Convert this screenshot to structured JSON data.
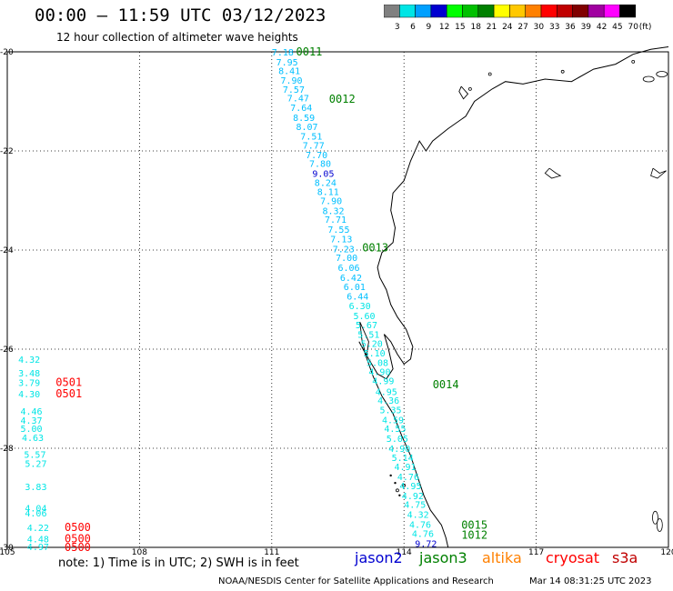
{
  "header": {
    "title": "00:00 — 11:59 UTC 03/12/2023",
    "subtitle": "12 hour collection of altimeter wave heights"
  },
  "colorbar": {
    "colors": [
      "#808080",
      "#00e5e5",
      "#00a0ff",
      "#0000d0",
      "#00ff00",
      "#00c000",
      "#008000",
      "#ffff00",
      "#ffc800",
      "#ff8000",
      "#ff0000",
      "#c00000",
      "#800000",
      "#a000a0",
      "#ff00ff",
      "#000000"
    ],
    "labels": [
      "3",
      "6",
      "9",
      "12",
      "15",
      "18",
      "21",
      "24",
      "27",
      "30",
      "33",
      "36",
      "39",
      "42",
      "45",
      "70"
    ],
    "unit": "(ft)"
  },
  "map": {
    "lon_ticks": [
      "105",
      "108",
      "111",
      "114",
      "117",
      "120"
    ],
    "lat_ticks": [
      "-20",
      "-22",
      "-24",
      "-26",
      "-28",
      "-30"
    ],
    "track_values": [
      {
        "text": "7.18",
        "lon": 111.0,
        "lat": -20.0,
        "color": "#00bfff"
      },
      {
        "text": "7.95",
        "lon": 111.1,
        "lat": -20.2,
        "color": "#00bfff"
      },
      {
        "text": "8.41",
        "lon": 111.15,
        "lat": -20.38,
        "color": "#00bfff"
      },
      {
        "text": "7.90",
        "lon": 111.2,
        "lat": -20.57,
        "color": "#00bfff"
      },
      {
        "text": "7.57",
        "lon": 111.25,
        "lat": -20.75,
        "color": "#00bfff"
      },
      {
        "text": "7.47",
        "lon": 111.35,
        "lat": -20.93,
        "color": "#00bfff"
      },
      {
        "text": "7.64",
        "lon": 111.42,
        "lat": -21.12,
        "color": "#00bfff"
      },
      {
        "text": "8.59",
        "lon": 111.48,
        "lat": -21.32,
        "color": "#00bfff"
      },
      {
        "text": "8.07",
        "lon": 111.55,
        "lat": -21.5,
        "color": "#00bfff"
      },
      {
        "text": "7.51",
        "lon": 111.65,
        "lat": -21.7,
        "color": "#00bfff"
      },
      {
        "text": "7.77",
        "lon": 111.7,
        "lat": -21.88,
        "color": "#00bfff"
      },
      {
        "text": "7.70",
        "lon": 111.77,
        "lat": -22.07,
        "color": "#00bfff"
      },
      {
        "text": "7.80",
        "lon": 111.85,
        "lat": -22.25,
        "color": "#00bfff"
      },
      {
        "text": "9.05",
        "lon": 111.92,
        "lat": -22.45,
        "color": "#0000d0"
      },
      {
        "text": "8.24",
        "lon": 111.97,
        "lat": -22.63,
        "color": "#00bfff"
      },
      {
        "text": "8.11",
        "lon": 112.03,
        "lat": -22.82,
        "color": "#00bfff"
      },
      {
        "text": "7.90",
        "lon": 112.1,
        "lat": -23.0,
        "color": "#00bfff"
      },
      {
        "text": "8.32",
        "lon": 112.15,
        "lat": -23.2,
        "color": "#00bfff"
      },
      {
        "text": "7.71",
        "lon": 112.2,
        "lat": -23.38,
        "color": "#00bfff"
      },
      {
        "text": "7.55",
        "lon": 112.27,
        "lat": -23.58,
        "color": "#00bfff"
      },
      {
        "text": "7.13",
        "lon": 112.33,
        "lat": -23.77,
        "color": "#00bfff"
      },
      {
        "text": "7.23",
        "lon": 112.38,
        "lat": -23.97,
        "color": "#00bfff"
      },
      {
        "text": "7.00",
        "lon": 112.45,
        "lat": -24.15,
        "color": "#00bfff"
      },
      {
        "text": "6.06",
        "lon": 112.5,
        "lat": -24.35,
        "color": "#00bfff"
      },
      {
        "text": "6.42",
        "lon": 112.55,
        "lat": -24.55,
        "color": "#00bfff"
      },
      {
        "text": "6.01",
        "lon": 112.63,
        "lat": -24.73,
        "color": "#00bfff"
      },
      {
        "text": "6.44",
        "lon": 112.7,
        "lat": -24.93,
        "color": "#00bfff"
      },
      {
        "text": "6.30",
        "lon": 112.75,
        "lat": -25.12,
        "color": "#00e5e5"
      },
      {
        "text": "5.60",
        "lon": 112.85,
        "lat": -25.32,
        "color": "#00e5e5"
      },
      {
        "text": "5.67",
        "lon": 112.9,
        "lat": -25.5,
        "color": "#00e5e5"
      },
      {
        "text": "5.51",
        "lon": 112.95,
        "lat": -25.7,
        "color": "#00e5e5"
      },
      {
        "text": "5.20",
        "lon": 113.02,
        "lat": -25.88,
        "color": "#00e5e5"
      },
      {
        "text": "5.10",
        "lon": 113.08,
        "lat": -26.07,
        "color": "#00e5e5"
      },
      {
        "text": "5.08",
        "lon": 113.15,
        "lat": -26.27,
        "color": "#00e5e5"
      },
      {
        "text": "4.90",
        "lon": 113.2,
        "lat": -26.45,
        "color": "#00e5e5"
      },
      {
        "text": "4.99",
        "lon": 113.28,
        "lat": -26.63,
        "color": "#00e5e5"
      },
      {
        "text": "4.95",
        "lon": 113.35,
        "lat": -26.85,
        "color": "#00e5e5"
      },
      {
        "text": "4.36",
        "lon": 113.4,
        "lat": -27.03,
        "color": "#00e5e5"
      },
      {
        "text": "5.35",
        "lon": 113.45,
        "lat": -27.22,
        "color": "#00e5e5"
      },
      {
        "text": "4.59",
        "lon": 113.5,
        "lat": -27.42,
        "color": "#00e5e5"
      },
      {
        "text": "4.55",
        "lon": 113.55,
        "lat": -27.6,
        "color": "#00e5e5"
      },
      {
        "text": "5.05",
        "lon": 113.6,
        "lat": -27.8,
        "color": "#00e5e5"
      },
      {
        "text": "4.90",
        "lon": 113.65,
        "lat": -28.0,
        "color": "#00e5e5"
      },
      {
        "text": "5.14",
        "lon": 113.72,
        "lat": -28.18,
        "color": "#00e5e5"
      },
      {
        "text": "4.91",
        "lon": 113.78,
        "lat": -28.37,
        "color": "#00e5e5"
      },
      {
        "text": "4.76",
        "lon": 113.85,
        "lat": -28.57,
        "color": "#00e5e5"
      },
      {
        "text": "4.95",
        "lon": 113.9,
        "lat": -28.75,
        "color": "#00e5e5"
      },
      {
        "text": "4.92",
        "lon": 113.95,
        "lat": -28.95,
        "color": "#00e5e5"
      },
      {
        "text": "4.75",
        "lon": 114.0,
        "lat": -29.13,
        "color": "#00e5e5"
      },
      {
        "text": "4.32",
        "lon": 114.07,
        "lat": -29.33,
        "color": "#00e5e5"
      },
      {
        "text": "4.76",
        "lon": 114.12,
        "lat": -29.53,
        "color": "#00e5e5"
      },
      {
        "text": "4.76",
        "lon": 114.18,
        "lat": -29.72,
        "color": "#00e5e5"
      },
      {
        "text": "9.72",
        "lon": 114.25,
        "lat": -29.92,
        "color": "#0000d0"
      }
    ],
    "west_values": [
      {
        "text": "4.32",
        "lon": 105.25,
        "lat": -26.2,
        "color": "#00e5e5"
      },
      {
        "text": "3.48",
        "lon": 105.25,
        "lat": -26.48,
        "color": "#00e5e5"
      },
      {
        "text": "3.79",
        "lon": 105.25,
        "lat": -26.67,
        "color": "#00e5e5"
      },
      {
        "text": "4.30",
        "lon": 105.25,
        "lat": -26.9,
        "color": "#00e5e5"
      },
      {
        "text": "4.46",
        "lon": 105.3,
        "lat": -27.25,
        "color": "#00e5e5"
      },
      {
        "text": "4.37",
        "lon": 105.3,
        "lat": -27.43,
        "color": "#00e5e5"
      },
      {
        "text": "5.00",
        "lon": 105.3,
        "lat": -27.6,
        "color": "#00e5e5"
      },
      {
        "text": "4.63",
        "lon": 105.33,
        "lat": -27.78,
        "color": "#00e5e5"
      },
      {
        "text": "5.57",
        "lon": 105.38,
        "lat": -28.12,
        "color": "#00e5e5"
      },
      {
        "text": "5.27",
        "lon": 105.4,
        "lat": -28.3,
        "color": "#00e5e5"
      },
      {
        "text": "3.83",
        "lon": 105.4,
        "lat": -28.77,
        "color": "#00e5e5"
      },
      {
        "text": "4.04",
        "lon": 105.4,
        "lat": -29.2,
        "color": "#00e5e5"
      },
      {
        "text": "4.06",
        "lon": 105.4,
        "lat": -29.3,
        "color": "#00e5e5"
      },
      {
        "text": "4.22",
        "lon": 105.45,
        "lat": -29.6,
        "color": "#00e5e5"
      },
      {
        "text": "4.48",
        "lon": 105.45,
        "lat": -29.83,
        "color": "#00e5e5"
      },
      {
        "text": "4.97",
        "lon": 105.45,
        "lat": -29.98,
        "color": "#00e5e5"
      }
    ],
    "time_labels": [
      {
        "text": "0011",
        "lon": 111.55,
        "lat": -20.0,
        "color": "#008000"
      },
      {
        "text": "0012",
        "lon": 112.3,
        "lat": -20.95,
        "color": "#008000"
      },
      {
        "text": "0013",
        "lon": 113.05,
        "lat": -23.95,
        "color": "#008000"
      },
      {
        "text": "0014",
        "lon": 114.65,
        "lat": -26.72,
        "color": "#008000"
      },
      {
        "text": "0015",
        "lon": 115.3,
        "lat": -29.55,
        "color": "#008000"
      },
      {
        "text": "1012",
        "lon": 115.3,
        "lat": -29.75,
        "color": "#008000"
      },
      {
        "text": "0501",
        "lon": 106.1,
        "lat": -26.67,
        "color": "#ff0000"
      },
      {
        "text": "0501",
        "lon": 106.1,
        "lat": -26.9,
        "color": "#ff0000"
      },
      {
        "text": "0500",
        "lon": 106.3,
        "lat": -29.6,
        "color": "#ff0000"
      },
      {
        "text": "0500",
        "lon": 106.3,
        "lat": -29.83,
        "color": "#ff0000"
      },
      {
        "text": "0500",
        "lon": 106.3,
        "lat": -30.0,
        "color": "#ff0000"
      }
    ]
  },
  "footer": {
    "note": "note: 1) Time is in UTC; 2) SWH is in feet",
    "satellites": [
      {
        "name": "jason2",
        "color": "#0000d0"
      },
      {
        "name": "jason3",
        "color": "#008000"
      },
      {
        "name": "altika",
        "color": "#ff8000"
      },
      {
        "name": "cryosat",
        "color": "#ff0000"
      },
      {
        "name": "s3a",
        "color": "#c00000"
      }
    ],
    "credit": "NOAA/NESDIS Center for Satellite Applications and Research",
    "timestamp": "Mar 14 08:31:25 UTC 2023"
  }
}
